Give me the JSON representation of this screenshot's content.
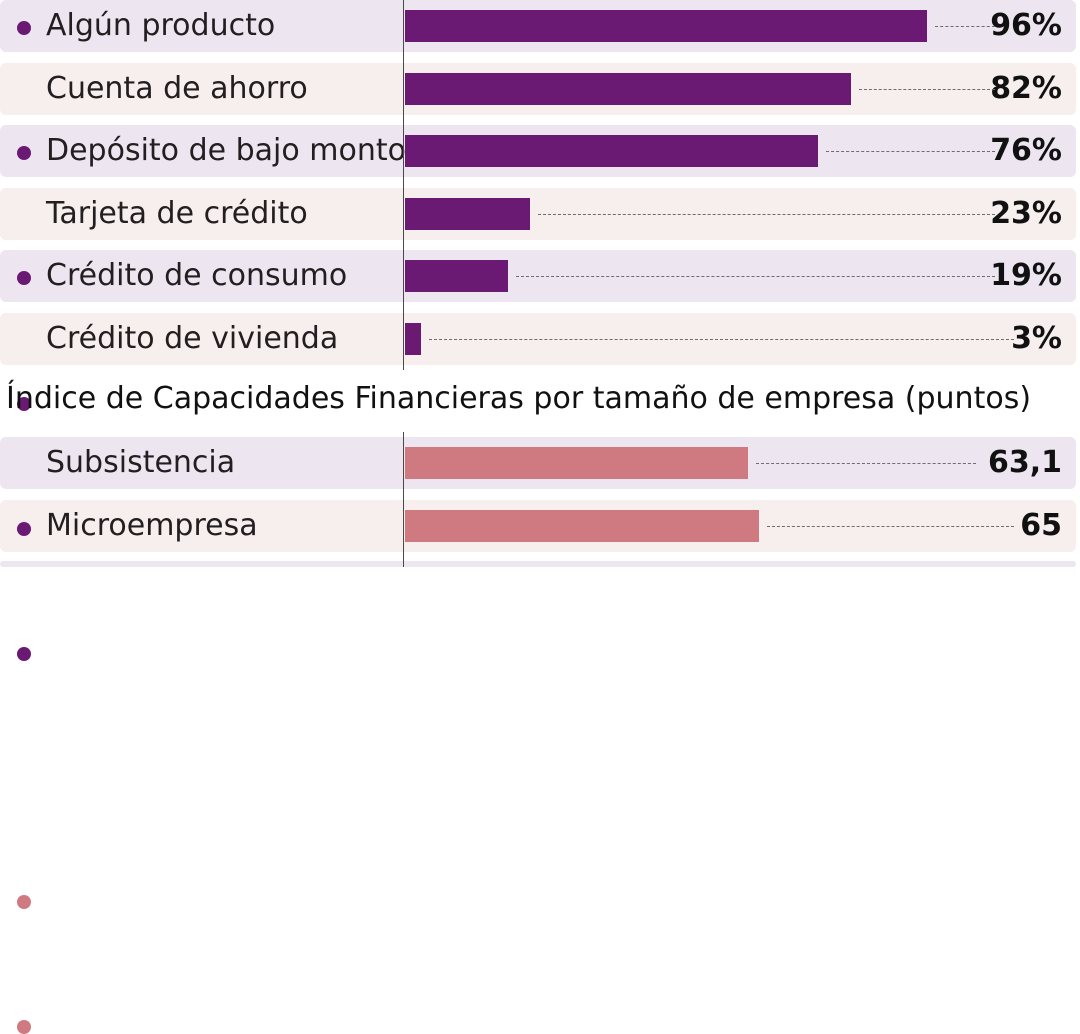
{
  "chart_data": [
    {
      "type": "bar",
      "orientation": "horizontal",
      "categories": [
        "Algún producto",
        "Cuenta de ahorro",
        "Depósito de bajo monto",
        "Tarjeta de crédito",
        "Crédito de consumo",
        "Crédito de vivienda"
      ],
      "values": [
        96,
        82,
        76,
        23,
        19,
        3
      ],
      "labels": [
        "96%",
        "82%",
        "76%",
        "23%",
        "19%",
        "3%"
      ],
      "color": "#6b1a74",
      "xlim": [
        0,
        100
      ],
      "title": ""
    },
    {
      "type": "bar",
      "orientation": "horizontal",
      "title": "Índice de Capacidades Financieras por tamaño de empresa (puntos)",
      "categories": [
        "Subsistencia",
        "Microempresa"
      ],
      "values": [
        63.1,
        65
      ],
      "labels": [
        "63,1",
        "65"
      ],
      "color": "#cf7a80"
    }
  ],
  "colors": {
    "row_odd": "#ede6f1",
    "row_even": "#f7eeee",
    "text": "#231f20"
  }
}
